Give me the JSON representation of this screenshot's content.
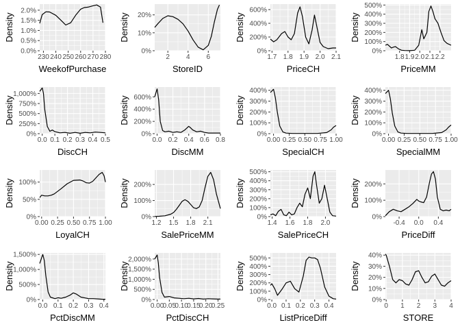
{
  "chart_data": [
    {
      "type": "line",
      "xlabel": "WeekofPurchase",
      "ylabel": "Density",
      "xlim": [
        227,
        280
      ],
      "ylim": [
        0,
        0.023
      ],
      "xticks": [
        230,
        240,
        250,
        260,
        270,
        280
      ],
      "xtick_labels": [
        "230",
        "240",
        "250",
        "260",
        "270",
        "280"
      ],
      "yticks": [
        0,
        0.005,
        0.01,
        0.015,
        0.02
      ],
      "ytick_labels": [
        "0.0%",
        "0.5%",
        "1.0%",
        "1.5%",
        "2.0%"
      ],
      "x": [
        227,
        229,
        232,
        235,
        240,
        245,
        248,
        252,
        256,
        260,
        263,
        266,
        270,
        273,
        276,
        278
      ],
      "y": [
        0.0135,
        0.0178,
        0.0192,
        0.0191,
        0.0175,
        0.0145,
        0.0127,
        0.0138,
        0.0175,
        0.0205,
        0.0213,
        0.0215,
        0.0222,
        0.0226,
        0.0215,
        0.0138
      ]
    },
    {
      "type": "line",
      "xlabel": "StoreID",
      "ylabel": "Density",
      "xlim": [
        0.7,
        7.2
      ],
      "ylim": [
        0,
        0.26
      ],
      "xticks": [
        2,
        4,
        6
      ],
      "xtick_labels": [
        "2",
        "4",
        "6"
      ],
      "yticks": [
        0,
        0.1,
        0.2
      ],
      "ytick_labels": [
        "0%",
        "10%",
        "20%"
      ],
      "x": [
        0.7,
        1,
        1.5,
        2,
        2.5,
        3,
        3.5,
        4,
        4.5,
        5,
        5.5,
        6,
        6.3,
        6.6,
        6.9,
        7.1
      ],
      "y": [
        0.13,
        0.15,
        0.18,
        0.195,
        0.19,
        0.175,
        0.15,
        0.11,
        0.06,
        0.02,
        0.005,
        0.03,
        0.08,
        0.16,
        0.23,
        0.255
      ]
    },
    {
      "type": "line",
      "xlabel": "PriceCH",
      "ylabel": "Density",
      "xlim": [
        1.69,
        2.1
      ],
      "ylim": [
        0,
        6.8
      ],
      "xticks": [
        1.7,
        1.8,
        1.9,
        2.0,
        2.1
      ],
      "xtick_labels": [
        "1.7",
        "1.8",
        "1.9",
        "2.0",
        "2.1"
      ],
      "yticks": [
        0,
        2,
        4,
        6
      ],
      "ytick_labels": [
        "0%",
        "200%",
        "400%",
        "600%"
      ],
      "x": [
        1.69,
        1.71,
        1.73,
        1.76,
        1.78,
        1.8,
        1.82,
        1.84,
        1.86,
        1.875,
        1.89,
        1.91,
        1.93,
        1.95,
        1.965,
        1.98,
        2.0,
        2.02,
        2.05,
        2.08,
        2.1
      ],
      "y": [
        1.7,
        1.3,
        1.6,
        2.5,
        2.8,
        2.0,
        1.6,
        2.5,
        5.5,
        6.4,
        5.0,
        2.0,
        1.0,
        3.0,
        5.2,
        3.5,
        1.2,
        0.6,
        0.3,
        0.4,
        0.4
      ]
    },
    {
      "type": "line",
      "xlabel": "PriceMM",
      "ylabel": "Density",
      "xlim": [
        1.66,
        2.31
      ],
      "ylim": [
        0,
        5.1
      ],
      "xticks": [
        1.8,
        1.9,
        2.0,
        2.1,
        2.2
      ],
      "xtick_labels": [
        "1.8",
        "1.9",
        "2.0",
        "2.1",
        "2.2"
      ],
      "yticks": [
        0,
        1,
        2,
        3,
        4,
        5
      ],
      "ytick_labels": [
        "0%",
        "100%",
        "200%",
        "300%",
        "400%",
        "500%"
      ],
      "x": [
        1.66,
        1.68,
        1.7,
        1.72,
        1.74,
        1.76,
        1.79,
        1.82,
        1.85,
        1.9,
        1.95,
        1.99,
        2.02,
        2.04,
        2.07,
        2.09,
        2.11,
        2.13,
        2.15,
        2.18,
        2.21,
        2.24,
        2.27,
        2.31
      ],
      "y": [
        0.6,
        0.7,
        0.5,
        0.3,
        0.4,
        0.45,
        0.2,
        0.05,
        0.02,
        0.01,
        0.05,
        0.6,
        2.3,
        1.3,
        2.0,
        4.3,
        4.9,
        4.3,
        3.5,
        3.0,
        2.0,
        1.1,
        0.8,
        0.6
      ]
    },
    {
      "type": "line",
      "xlabel": "DiscCH",
      "ylabel": "Density",
      "xlim": [
        -0.02,
        0.5
      ],
      "ylim": [
        0,
        11.6
      ],
      "xticks": [
        0,
        0.1,
        0.2,
        0.3,
        0.4,
        0.5
      ],
      "xtick_labels": [
        "0.0",
        "0.1",
        "0.2",
        "0.3",
        "0.4",
        "0.5"
      ],
      "yticks": [
        0,
        2.5,
        5,
        7.5,
        10
      ],
      "ytick_labels": [
        "0%",
        "250%",
        "500%",
        "750%",
        "1,000%"
      ],
      "x": [
        -0.02,
        0,
        0.01,
        0.02,
        0.04,
        0.06,
        0.08,
        0.1,
        0.14,
        0.18,
        0.22,
        0.26,
        0.3,
        0.34,
        0.38,
        0.42,
        0.46,
        0.5
      ],
      "y": [
        10.5,
        11.4,
        10,
        6,
        1.8,
        0.6,
        0.9,
        0.5,
        0.2,
        0.3,
        0.1,
        0.3,
        0.1,
        0.3,
        0.2,
        0.4,
        0.3,
        0.2
      ]
    },
    {
      "type": "line",
      "xlabel": "DiscMM",
      "ylabel": "Density",
      "xlim": [
        -0.03,
        0.8
      ],
      "ylim": [
        0,
        7.6
      ],
      "xticks": [
        0,
        0.2,
        0.4,
        0.6,
        0.8
      ],
      "xtick_labels": [
        "0.0",
        "0.2",
        "0.4",
        "0.6",
        "0.8"
      ],
      "yticks": [
        0,
        2,
        4,
        6
      ],
      "ytick_labels": [
        "0%",
        "200%",
        "400%",
        "600%"
      ],
      "x": [
        -0.03,
        0,
        0.02,
        0.04,
        0.07,
        0.1,
        0.15,
        0.2,
        0.25,
        0.3,
        0.35,
        0.4,
        0.42,
        0.45,
        0.5,
        0.55,
        0.6,
        0.65,
        0.7,
        0.75,
        0.8
      ],
      "y": [
        6,
        7.3,
        5.5,
        2,
        0.5,
        0.3,
        0.4,
        0.2,
        0.3,
        0.2,
        0.6,
        1.2,
        1.0,
        0.6,
        0.3,
        0.4,
        0.2,
        0.1,
        0.1,
        0.1,
        0.1
      ]
    },
    {
      "type": "line",
      "xlabel": "SpecialCH",
      "ylabel": "Density",
      "xlim": [
        -0.05,
        1.0
      ],
      "ylim": [
        0,
        4.3
      ],
      "xticks": [
        0,
        0.25,
        0.5,
        0.75,
        1.0
      ],
      "xtick_labels": [
        "0.00",
        "0.25",
        "0.50",
        "0.75",
        "1.00"
      ],
      "yticks": [
        0,
        1,
        2,
        3,
        4
      ],
      "ytick_labels": [
        "0%",
        "100%",
        "200%",
        "300%",
        "400%"
      ],
      "x": [
        -0.05,
        0,
        0.03,
        0.06,
        0.1,
        0.15,
        0.2,
        0.3,
        0.5,
        0.7,
        0.85,
        0.92,
        0.96,
        1.0
      ],
      "y": [
        3.8,
        4.1,
        3.3,
        2.0,
        0.7,
        0.15,
        0.05,
        0.02,
        0.02,
        0.02,
        0.1,
        0.35,
        0.6,
        0.75
      ]
    },
    {
      "type": "line",
      "xlabel": "SpecialMM",
      "ylabel": "Density",
      "xlim": [
        -0.05,
        1.0
      ],
      "ylim": [
        0,
        4.3
      ],
      "xticks": [
        0,
        0.25,
        0.5,
        0.75,
        1.0
      ],
      "xtick_labels": [
        "0.00",
        "0.25",
        "0.50",
        "0.75",
        "1.00"
      ],
      "yticks": [
        0,
        1,
        2,
        3,
        4
      ],
      "ytick_labels": [
        "0%",
        "100%",
        "200%",
        "300%",
        "400%"
      ],
      "x": [
        -0.05,
        0,
        0.03,
        0.06,
        0.1,
        0.15,
        0.2,
        0.3,
        0.5,
        0.7,
        0.85,
        0.92,
        0.96,
        1.0
      ],
      "y": [
        3.7,
        4.0,
        3.2,
        1.9,
        0.7,
        0.15,
        0.05,
        0.02,
        0.02,
        0.02,
        0.1,
        0.35,
        0.6,
        0.8
      ]
    },
    {
      "type": "line",
      "xlabel": "LoyalCH",
      "ylabel": "Density",
      "xlim": [
        -0.03,
        1.0
      ],
      "ylim": [
        0,
        1.35
      ],
      "xticks": [
        0,
        0.25,
        0.5,
        0.75,
        1.0
      ],
      "xtick_labels": [
        "0.00",
        "0.25",
        "0.50",
        "0.75",
        "1.00"
      ],
      "yticks": [
        0,
        0.5,
        1.0
      ],
      "ytick_labels": [
        "0%",
        "50%",
        "100%"
      ],
      "x": [
        -0.03,
        0,
        0.05,
        0.1,
        0.15,
        0.2,
        0.3,
        0.4,
        0.5,
        0.6,
        0.65,
        0.7,
        0.75,
        0.8,
        0.85,
        0.9,
        0.95,
        0.98,
        1.0
      ],
      "y": [
        0.55,
        0.62,
        0.6,
        0.6,
        0.62,
        0.66,
        0.8,
        0.95,
        1.05,
        1.06,
        1.03,
        0.98,
        0.97,
        1.02,
        1.12,
        1.22,
        1.28,
        1.18,
        1.0
      ]
    },
    {
      "type": "line",
      "xlabel": "SalePriceMM",
      "ylabel": "Density",
      "xlim": [
        1.17,
        2.32
      ],
      "ylim": [
        0,
        2.9
      ],
      "xticks": [
        1.2,
        1.5,
        1.8,
        2.1
      ],
      "xtick_labels": [
        "1.2",
        "1.5",
        "1.8",
        "2.1"
      ],
      "yticks": [
        0,
        1,
        2
      ],
      "ytick_labels": [
        "0%",
        "100%",
        "200%"
      ],
      "x": [
        1.17,
        1.25,
        1.35,
        1.45,
        1.5,
        1.55,
        1.6,
        1.65,
        1.7,
        1.75,
        1.8,
        1.85,
        1.9,
        1.95,
        2.0,
        2.05,
        2.1,
        2.15,
        2.2,
        2.25,
        2.32
      ],
      "y": [
        0.01,
        0.02,
        0.05,
        0.15,
        0.25,
        0.45,
        0.7,
        0.95,
        1.05,
        0.95,
        0.75,
        0.55,
        0.5,
        0.6,
        1.0,
        1.8,
        2.5,
        2.75,
        2.3,
        1.4,
        0.5
      ]
    },
    {
      "type": "line",
      "xlabel": "SalePriceCH",
      "ylabel": "Density",
      "xlim": [
        1.38,
        2.12
      ],
      "ylim": [
        0,
        5.2
      ],
      "xticks": [
        1.4,
        1.6,
        1.8,
        2.0
      ],
      "xtick_labels": [
        "1.4",
        "1.6",
        "1.8",
        "2.0"
      ],
      "yticks": [
        0,
        1,
        2,
        3,
        4,
        5
      ],
      "ytick_labels": [
        "0%",
        "100%",
        "200%",
        "300%",
        "400%",
        "500%"
      ],
      "x": [
        1.38,
        1.41,
        1.44,
        1.47,
        1.5,
        1.53,
        1.56,
        1.59,
        1.62,
        1.65,
        1.68,
        1.71,
        1.74,
        1.77,
        1.8,
        1.83,
        1.86,
        1.88,
        1.9,
        1.93,
        1.96,
        1.99,
        2.02,
        2.05,
        2.08,
        2.12
      ],
      "y": [
        0.2,
        0.3,
        0.1,
        0.6,
        0.8,
        0.2,
        0.1,
        0.5,
        0.2,
        0.3,
        1.0,
        1.5,
        1.1,
        2.5,
        3.2,
        2.0,
        4.5,
        5.0,
        3.5,
        1.5,
        2.0,
        3.5,
        2.0,
        0.5,
        0.1,
        0.05
      ]
    },
    {
      "type": "line",
      "xlabel": "PriceDiff",
      "ylabel": "Density",
      "xlim": [
        -0.68,
        0.66
      ],
      "ylim": [
        0,
        2.85
      ],
      "xticks": [
        -0.4,
        0,
        0.4
      ],
      "xtick_labels": [
        "-0.4",
        "0.0",
        "0.4"
      ],
      "yticks": [
        0,
        1,
        2
      ],
      "ytick_labels": [
        "0%",
        "100%",
        "200%"
      ],
      "x": [
        -0.68,
        -0.6,
        -0.52,
        -0.44,
        -0.36,
        -0.28,
        -0.2,
        -0.12,
        -0.04,
        0,
        0.04,
        0.1,
        0.16,
        0.22,
        0.26,
        0.3,
        0.34,
        0.38,
        0.44,
        0.5,
        0.56,
        0.62,
        0.66
      ],
      "y": [
        0.05,
        0.3,
        0.45,
        0.35,
        0.3,
        0.45,
        0.6,
        0.8,
        1.05,
        0.95,
        0.9,
        0.85,
        1.2,
        2.1,
        2.6,
        2.75,
        2.3,
        1.2,
        0.45,
        0.35,
        0.4,
        0.35,
        0.45
      ]
    },
    {
      "type": "line",
      "xlabel": "PctDiscMM",
      "ylabel": "Density",
      "xlim": [
        -0.02,
        0.41
      ],
      "ylim": [
        0,
        15.5
      ],
      "xticks": [
        0,
        0.1,
        0.2,
        0.3,
        0.4
      ],
      "xtick_labels": [
        "0.0",
        "0.1",
        "0.2",
        "0.3",
        "0.4"
      ],
      "yticks": [
        0,
        5,
        10,
        15
      ],
      "ytick_labels": [
        "0%",
        "500%",
        "1,000%",
        "1,500%"
      ],
      "x": [
        -0.02,
        0,
        0.01,
        0.02,
        0.035,
        0.05,
        0.08,
        0.1,
        0.12,
        0.15,
        0.18,
        0.2,
        0.22,
        0.25,
        0.28,
        0.3,
        0.33,
        0.36,
        0.39,
        0.41
      ],
      "y": [
        12,
        15,
        13,
        8,
        2.5,
        0.8,
        0.3,
        0.6,
        0.4,
        0.8,
        1.5,
        2.2,
        1.8,
        0.8,
        0.5,
        0.3,
        0.3,
        0.2,
        0.1,
        0.1
      ]
    },
    {
      "type": "line",
      "xlabel": "PctDiscCH",
      "ylabel": "Density",
      "xlim": [
        -0.01,
        0.26
      ],
      "ylim": [
        0,
        23
      ],
      "xticks": [
        0,
        0.05,
        0.1,
        0.15,
        0.2,
        0.25
      ],
      "xtick_labels": [
        "0.00",
        "0.05",
        "0.10",
        "0.15",
        "0.20",
        "0.25"
      ],
      "yticks": [
        0,
        5,
        10,
        15,
        20
      ],
      "ytick_labels": [
        "0%",
        "500%",
        "1,000%",
        "1,500%",
        "2,000%"
      ],
      "x": [
        -0.01,
        0,
        0.005,
        0.01,
        0.02,
        0.03,
        0.05,
        0.07,
        0.09,
        0.11,
        0.13,
        0.15,
        0.17,
        0.19,
        0.21,
        0.23,
        0.25,
        0.26
      ],
      "y": [
        20,
        22,
        18,
        11,
        3.5,
        1.2,
        1.5,
        0.8,
        0.6,
        0.4,
        0.6,
        0.3,
        0.5,
        0.2,
        0.4,
        0.3,
        0.2,
        0.2
      ]
    },
    {
      "type": "line",
      "xlabel": "ListPriceDiff",
      "ylabel": "Density",
      "xlim": [
        -0.01,
        0.45
      ],
      "ylim": [
        0,
        5.6
      ],
      "xticks": [
        0,
        0.1,
        0.2,
        0.3,
        0.4
      ],
      "xtick_labels": [
        "0.0",
        "0.1",
        "0.2",
        "0.3",
        "0.4"
      ],
      "yticks": [
        0,
        1,
        2,
        3,
        4,
        5
      ],
      "ytick_labels": [
        "0%",
        "100%",
        "200%",
        "300%",
        "400%",
        "500%"
      ],
      "x": [
        -0.01,
        0,
        0.02,
        0.04,
        0.07,
        0.1,
        0.13,
        0.16,
        0.19,
        0.22,
        0.24,
        0.26,
        0.28,
        0.3,
        0.32,
        0.34,
        0.37,
        0.4,
        0.43,
        0.45
      ],
      "y": [
        1.7,
        1.9,
        1.3,
        0.5,
        1.2,
        2.0,
        2.2,
        1.3,
        0.9,
        2.8,
        4.7,
        5.1,
        5.0,
        5.0,
        4.8,
        3.8,
        1.5,
        0.4,
        0.1,
        0.05
      ]
    },
    {
      "type": "line",
      "xlabel": "STORE",
      "ylabel": "Density",
      "xlim": [
        -0.05,
        4.0
      ],
      "ylim": [
        0,
        0.42
      ],
      "xticks": [
        0,
        1,
        2,
        3,
        4
      ],
      "xtick_labels": [
        "0",
        "1",
        "2",
        "3",
        "4"
      ],
      "yticks": [
        0,
        0.1,
        0.2,
        0.3,
        0.4
      ],
      "ytick_labels": [
        "0%",
        "10%",
        "20%",
        "30%",
        "40%"
      ],
      "x": [
        -0.05,
        0,
        0.2,
        0.4,
        0.6,
        0.8,
        1,
        1.2,
        1.4,
        1.6,
        1.8,
        2,
        2.2,
        2.4,
        2.6,
        2.8,
        3,
        3.2,
        3.4,
        3.6,
        3.8,
        4
      ],
      "y": [
        0.41,
        0.4,
        0.3,
        0.18,
        0.15,
        0.18,
        0.17,
        0.14,
        0.13,
        0.18,
        0.25,
        0.26,
        0.2,
        0.15,
        0.16,
        0.21,
        0.23,
        0.18,
        0.13,
        0.12,
        0.15,
        0.17
      ]
    }
  ]
}
